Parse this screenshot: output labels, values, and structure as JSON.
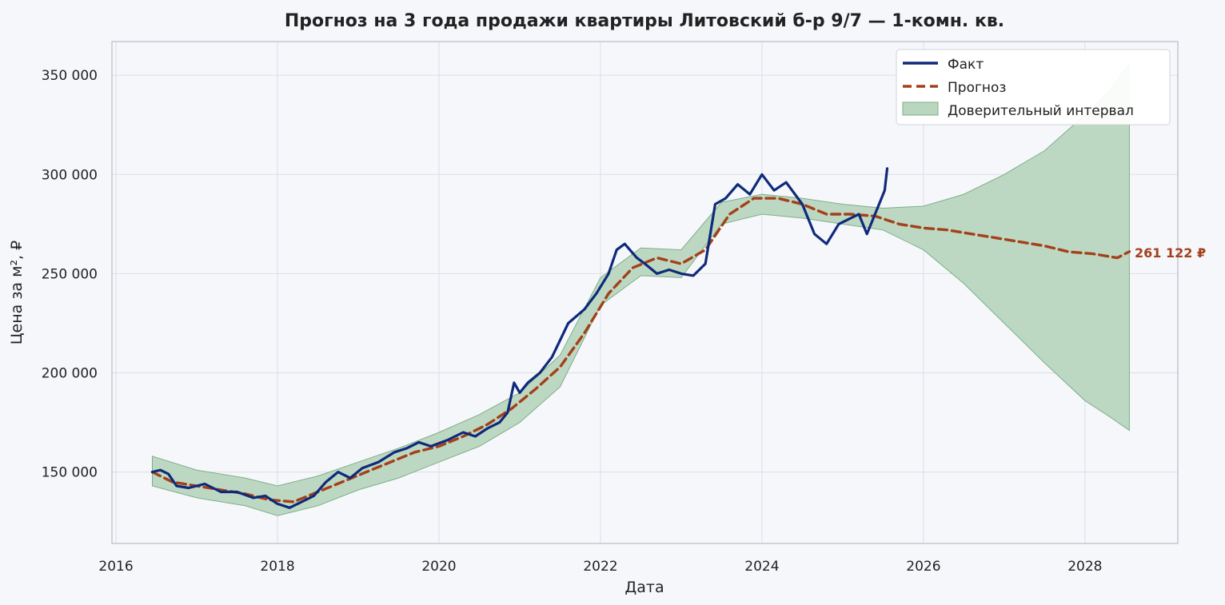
{
  "chart_data": {
    "type": "line",
    "title": "Прогноз на 3 года продажи квартиры  Литовский б-р 9/7 — 1-комн. кв.",
    "xlabel": "Дата",
    "ylabel": "Цена за м², ₽",
    "xlim": [
      2015.95,
      2029.15
    ],
    "ylim": [
      114000,
      367000
    ],
    "x_ticks": [
      2016,
      2018,
      2020,
      2022,
      2024,
      2026,
      2028
    ],
    "x_tick_labels": [
      "2016",
      "2018",
      "2020",
      "2022",
      "2024",
      "2026",
      "2028"
    ],
    "y_ticks": [
      150000,
      200000,
      250000,
      300000,
      350000
    ],
    "y_tick_labels": [
      "150 000",
      "200 000",
      "250 000",
      "300 000",
      "350 000"
    ],
    "grid": true,
    "legend_position": "top-right",
    "end_label": "261 122 ₽",
    "colors": {
      "actual": "#0f2a7a",
      "forecast": "#a4401a",
      "band_fill": "#b9d6bf",
      "band_edge": "#7fae88",
      "grid": "#dfe2e8",
      "frame": "#c4c7cd"
    },
    "series": [
      {
        "name": "Факт",
        "x": [
          2016.45,
          2016.55,
          2016.65,
          2016.75,
          2016.9,
          2017.1,
          2017.3,
          2017.5,
          2017.7,
          2017.85,
          2018.0,
          2018.15,
          2018.3,
          2018.45,
          2018.6,
          2018.75,
          2018.9,
          2019.05,
          2019.25,
          2019.45,
          2019.6,
          2019.75,
          2019.9,
          2020.1,
          2020.3,
          2020.45,
          2020.6,
          2020.75,
          2020.85,
          2020.93,
          2021.0,
          2021.1,
          2021.25,
          2021.4,
          2021.6,
          2021.8,
          2021.95,
          2022.1,
          2022.2,
          2022.3,
          2022.45,
          2022.55,
          2022.7,
          2022.85,
          2023.0,
          2023.15,
          2023.3,
          2023.42,
          2023.55,
          2023.7,
          2023.85,
          2024.0,
          2024.15,
          2024.3,
          2024.5,
          2024.65,
          2024.8,
          2024.95,
          2025.1,
          2025.2,
          2025.3,
          2025.45,
          2025.52,
          2025.55
        ],
        "y": [
          150000,
          151000,
          149000,
          143000,
          142000,
          144000,
          140000,
          140000,
          137000,
          138000,
          134000,
          132000,
          135000,
          138000,
          145000,
          150000,
          147000,
          152000,
          155000,
          160000,
          162000,
          165000,
          163000,
          166000,
          170000,
          168000,
          172000,
          175000,
          180000,
          195000,
          190000,
          195000,
          200000,
          208000,
          225000,
          232000,
          240000,
          250000,
          262000,
          265000,
          258000,
          255000,
          250000,
          252000,
          250000,
          249000,
          255000,
          285000,
          288000,
          295000,
          290000,
          300000,
          292000,
          296000,
          285000,
          270000,
          265000,
          275000,
          278000,
          280000,
          270000,
          285000,
          292000,
          303000
        ]
      },
      {
        "name": "Прогноз",
        "x": [
          2016.45,
          2016.7,
          2017.0,
          2017.3,
          2017.6,
          2017.9,
          2018.2,
          2018.5,
          2018.8,
          2019.1,
          2019.4,
          2019.7,
          2020.0,
          2020.3,
          2020.6,
          2020.9,
          2021.2,
          2021.5,
          2021.8,
          2022.1,
          2022.4,
          2022.7,
          2023.0,
          2023.3,
          2023.6,
          2023.9,
          2024.2,
          2024.5,
          2024.8,
          2025.1,
          2025.4,
          2025.7,
          2026.0,
          2026.3,
          2026.6,
          2026.9,
          2027.2,
          2027.5,
          2027.8,
          2028.1,
          2028.4,
          2028.55
        ],
        "y": [
          150000,
          145000,
          143000,
          141000,
          139000,
          136000,
          135000,
          140000,
          145000,
          150000,
          155000,
          160000,
          163000,
          168000,
          174000,
          182000,
          192000,
          203000,
          220000,
          240000,
          253000,
          258000,
          255000,
          262000,
          280000,
          288000,
          288000,
          285000,
          280000,
          280000,
          279000,
          275000,
          273000,
          272000,
          270000,
          268000,
          266000,
          264000,
          261000,
          260000,
          258000,
          261122
        ]
      }
    ],
    "confidence_interval": {
      "name": "Доверительный интервал",
      "x": [
        2016.45,
        2017.0,
        2017.6,
        2018.0,
        2018.5,
        2019.0,
        2019.5,
        2020.0,
        2020.5,
        2021.0,
        2021.5,
        2022.0,
        2022.5,
        2023.0,
        2023.5,
        2024.0,
        2024.5,
        2025.0,
        2025.5,
        2026.0,
        2026.5,
        2027.0,
        2027.5,
        2028.0,
        2028.3,
        2028.55
      ],
      "upper": [
        158000,
        151000,
        147000,
        143000,
        148000,
        155000,
        162000,
        170000,
        179000,
        190000,
        209000,
        248000,
        263000,
        262000,
        286000,
        290000,
        288000,
        285000,
        283000,
        284000,
        290000,
        300000,
        312000,
        330000,
        342000,
        356000
      ],
      "lower": [
        143000,
        137000,
        133000,
        128000,
        133000,
        141000,
        147000,
        155000,
        163000,
        175000,
        193000,
        234000,
        249000,
        248000,
        275000,
        280000,
        278000,
        275000,
        272000,
        262000,
        245000,
        225000,
        205000,
        186000,
        178000,
        171000
      ]
    }
  }
}
